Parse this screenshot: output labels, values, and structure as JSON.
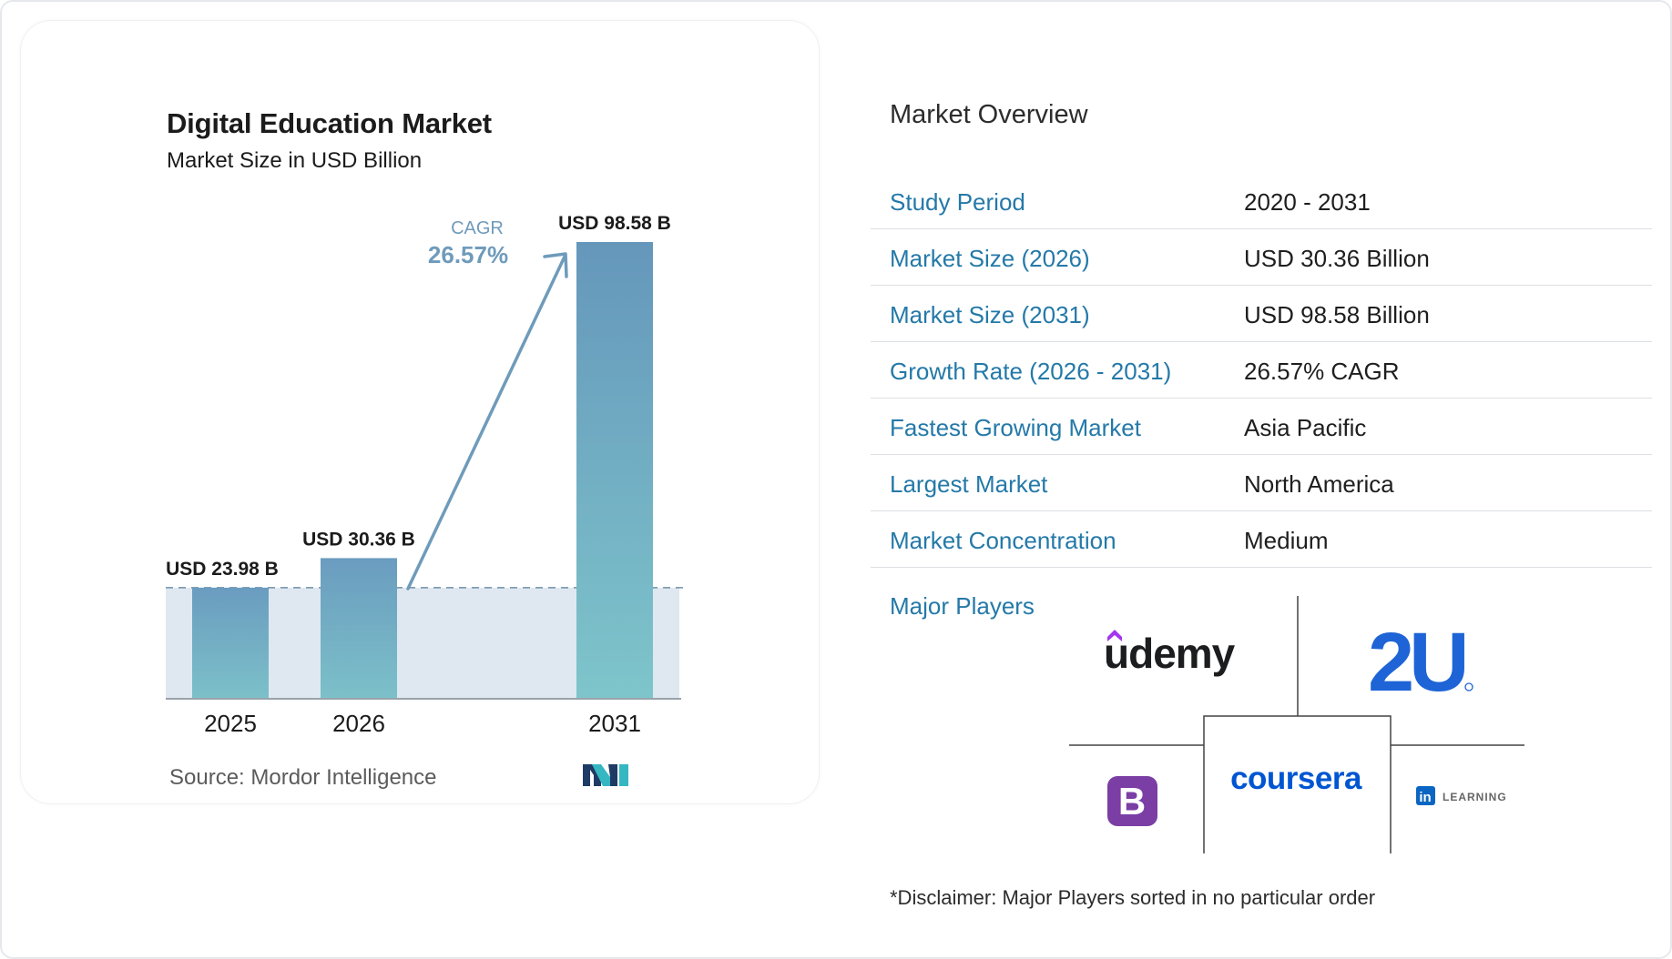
{
  "chart": {
    "title": "Digital Education Market",
    "subtitle": "Market Size in USD Billion",
    "cagr_label": "CAGR",
    "cagr_value": "26.57%",
    "source": "Source:  Mordor Intelligence"
  },
  "chart_data": {
    "type": "bar",
    "categories": [
      "2025",
      "2026",
      "2031"
    ],
    "values": [
      23.98,
      30.36,
      98.58
    ],
    "data_labels": [
      "USD 23.98 B",
      "USD 30.36 B",
      "USD 98.58 B"
    ],
    "title": "Digital Education Market",
    "subtitle": "Market Size in USD Billion",
    "ylim": [
      0,
      98.58
    ],
    "grid": false,
    "annotation": "CAGR 26.57%"
  },
  "overview": {
    "title": "Market Overview",
    "rows": [
      {
        "key": "Study Period",
        "value": "2020 - 2031"
      },
      {
        "key": "Market Size (2026)",
        "value": "USD 30.36 Billion"
      },
      {
        "key": "Market Size (2031)",
        "value": "USD 98.58 Billion"
      },
      {
        "key": "Growth Rate (2026 - 2031)",
        "value": "26.57% CAGR"
      },
      {
        "key": "Fastest Growing Market",
        "value": "Asia Pacific"
      },
      {
        "key": "Largest Market",
        "value": "North America"
      },
      {
        "key": "Market Concentration",
        "value": "Medium"
      }
    ],
    "players_label": "Major Players",
    "players": {
      "udemy": "udemy",
      "twou": "2U",
      "coursera": "coursera",
      "linkedin_in": "in",
      "linkedin_learning": "LEARNING",
      "byjus": "B"
    },
    "disclaimer": "*Disclaimer: Major Players sorted in no particular order"
  },
  "colors": {
    "bar_top": "#6597bb",
    "bar_bottom": "#7ec5cb",
    "band": "#dfe8f0",
    "accent": "#2479a8",
    "cagr": "#6f9bbb",
    "udemy_purple": "#a435f0",
    "twou_blue": "#1e64d6",
    "coursera_blue": "#0056d2",
    "linkedin_blue": "#0a66c2",
    "byjus_purple": "#7a3ea5"
  }
}
